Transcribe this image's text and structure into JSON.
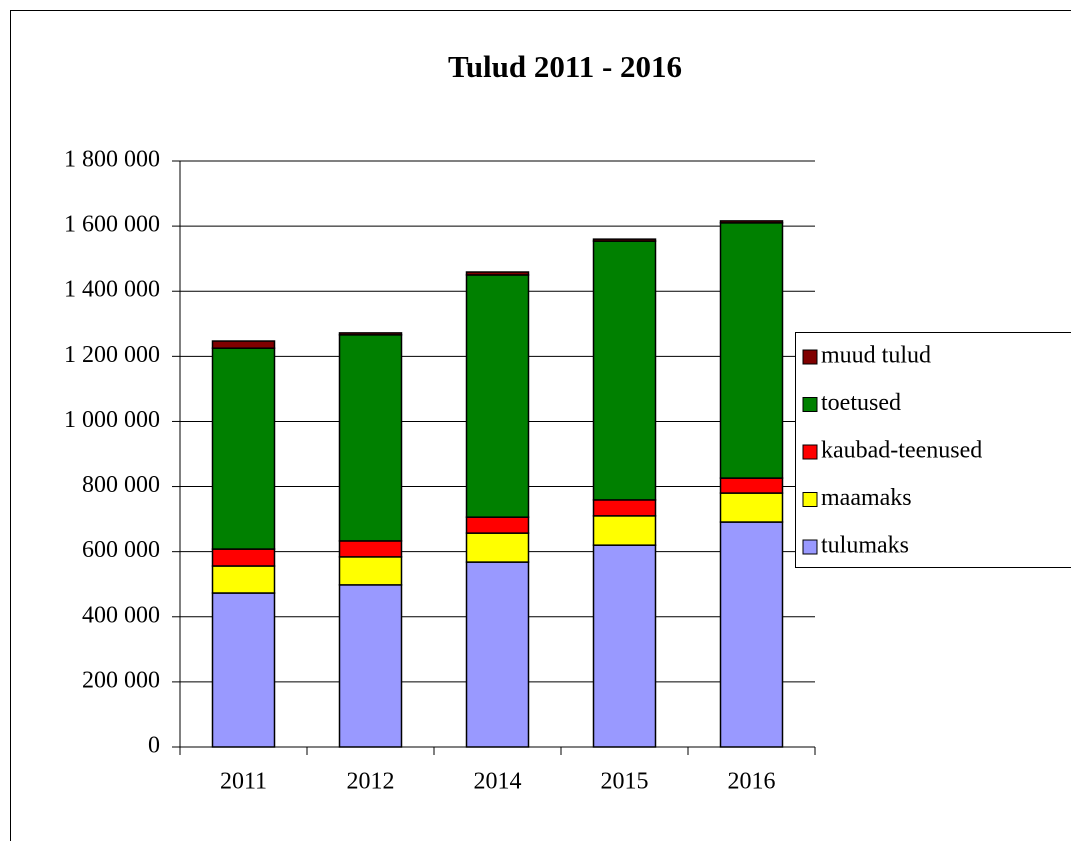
{
  "chart_data": {
    "type": "stacked_bar",
    "title": "Tulud 2011 - 2016",
    "categories": [
      "2011",
      "2012",
      "2014",
      "2015",
      "2016"
    ],
    "series": [
      {
        "name": "tulumaks",
        "color": "#9999ff",
        "values": [
          473000,
          498000,
          568000,
          620000,
          691000
        ]
      },
      {
        "name": "maamaks",
        "color": "#ffff00",
        "values": [
          83000,
          86000,
          89000,
          90000,
          89000
        ]
      },
      {
        "name": "kaubad-teenused",
        "color": "#ff0000",
        "values": [
          52000,
          49000,
          49000,
          49000,
          46000
        ]
      },
      {
        "name": "toetused",
        "color": "#008000",
        "values": [
          617000,
          633000,
          744000,
          795000,
          784000
        ]
      },
      {
        "name": "muud tulud",
        "color": "#800000",
        "values": [
          22000,
          6000,
          9000,
          6000,
          6000
        ]
      }
    ],
    "ylim": [
      0,
      1800000
    ],
    "yticks": [
      0,
      {
        "value": 200000,
        "label": "200 000"
      },
      {
        "value": 400000,
        "label": "400 000"
      },
      {
        "value": 600000,
        "label": "600 000"
      },
      {
        "value": 800000,
        "label": "800 000"
      },
      {
        "value": 1000000,
        "label": "1 000 000"
      },
      {
        "value": 1200000,
        "label": "1 200 000"
      },
      {
        "value": 1400000,
        "label": "1 400 000"
      },
      {
        "value": 1600000,
        "label": "1 600 000"
      },
      {
        "value": 1800000,
        "label": "1 800 000"
      }
    ],
    "grid": true,
    "legend": "right"
  }
}
